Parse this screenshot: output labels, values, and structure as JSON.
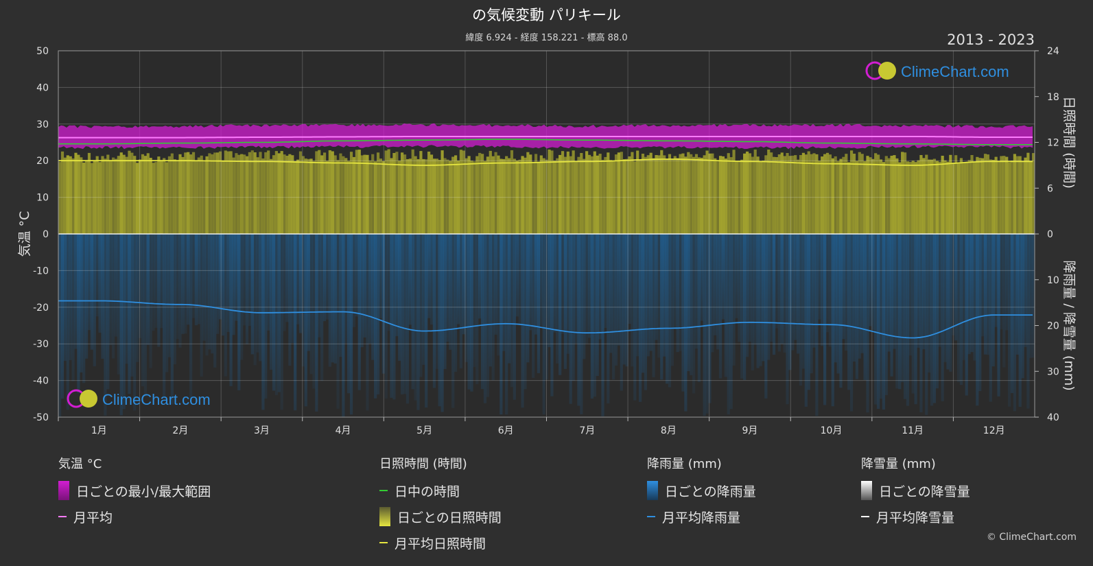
{
  "title": "の気候変動 パリキール",
  "subtitle": "緯度 6.924 - 経度 158.221 - 標高 88.0",
  "years": "2013 - 2023",
  "watermark": "ClimeChart.com",
  "copyright": "© ClimeChart.com",
  "colors": {
    "background": "#2f2f2f",
    "temp_range": "#d21ed2",
    "temp_avg": "#ff7cff",
    "daylight": "#33cc33",
    "sunshine_bar": "#b5b52f",
    "sunshine_avg": "#e6e640",
    "rain_bar": "#1d6aa8",
    "rain_avg": "#2f8fe0",
    "snow_avg": "#ffffff"
  },
  "legend": {
    "temperature": {
      "header": "気温 °C",
      "range_label": "日ごとの最小/最大範囲",
      "avg_label": "月平均"
    },
    "sunshine": {
      "header": "日照時間 (時間)",
      "daylight_label": "日中の時間",
      "daily_label": "日ごとの日照時間",
      "avg_label": "月平均日照時間"
    },
    "rain": {
      "header": "降雨量 (mm)",
      "daily_label": "日ごとの降雨量",
      "avg_label": "月平均降雨量"
    },
    "snow": {
      "header": "降雪量 (mm)",
      "daily_label": "日ごとの降雪量",
      "avg_label": "月平均降雪量"
    }
  },
  "chart_data": {
    "type": "area",
    "categories": [
      "1月",
      "2月",
      "3月",
      "4月",
      "5月",
      "6月",
      "7月",
      "8月",
      "9月",
      "10月",
      "11月",
      "12月"
    ],
    "y_left": {
      "label": "気温 °C",
      "range": [
        -50,
        50
      ],
      "ticks": [
        50,
        40,
        30,
        20,
        10,
        0,
        -10,
        -20,
        -30,
        -40,
        -50
      ]
    },
    "y_right_top": {
      "label": "日照時間 (時間)",
      "range": [
        0,
        24
      ],
      "ticks": [
        24,
        18,
        12,
        6,
        0
      ]
    },
    "y_right_bottom": {
      "label": "降雨量 / 降雪量 (mm)",
      "range": [
        0,
        40
      ],
      "ticks": [
        0,
        10,
        20,
        30,
        40
      ]
    },
    "grid": true,
    "series": [
      {
        "name": "月平均",
        "axis": "temperature",
        "values": [
          26.3,
          26.3,
          26.4,
          26.5,
          26.6,
          26.6,
          26.6,
          26.6,
          26.6,
          26.6,
          26.6,
          26.4
        ]
      },
      {
        "name": "日ごとの最小/最大範囲",
        "axis": "temperature",
        "min": [
          23.6,
          23.5,
          23.7,
          23.8,
          23.9,
          23.8,
          23.6,
          23.6,
          23.5,
          23.6,
          23.8,
          23.7
        ],
        "max": [
          29.3,
          29.4,
          29.6,
          29.7,
          29.8,
          29.6,
          29.4,
          29.6,
          29.7,
          29.7,
          29.5,
          29.3
        ]
      },
      {
        "name": "日中の時間",
        "axis": "sunshine",
        "values": [
          11.8,
          11.9,
          12.0,
          12.2,
          12.3,
          12.4,
          12.3,
          12.2,
          12.1,
          11.9,
          11.8,
          11.7
        ]
      },
      {
        "name": "日ごとの日照時間",
        "axis": "sunshine",
        "values": [
          10.9,
          10.9,
          11.0,
          11.1,
          11.1,
          11.0,
          11.1,
          11.1,
          11.1,
          11.0,
          10.9,
          10.8
        ]
      },
      {
        "name": "月平均日照時間",
        "axis": "sunshine",
        "values": [
          9.6,
          9.6,
          9.5,
          9.3,
          9.0,
          9.3,
          9.5,
          9.8,
          9.5,
          9.2,
          9.0,
          9.5
        ]
      },
      {
        "name": "月平均降雨量",
        "axis": "rain",
        "values": [
          14.6,
          15.4,
          17.2,
          17.0,
          21.2,
          19.6,
          21.6,
          20.6,
          19.3,
          19.8,
          22.7,
          17.7
        ]
      },
      {
        "name": "月平均降雪量",
        "axis": "rain",
        "values": [
          0,
          0,
          0,
          0,
          0,
          0,
          0,
          0,
          0,
          0,
          0,
          0
        ]
      }
    ]
  }
}
